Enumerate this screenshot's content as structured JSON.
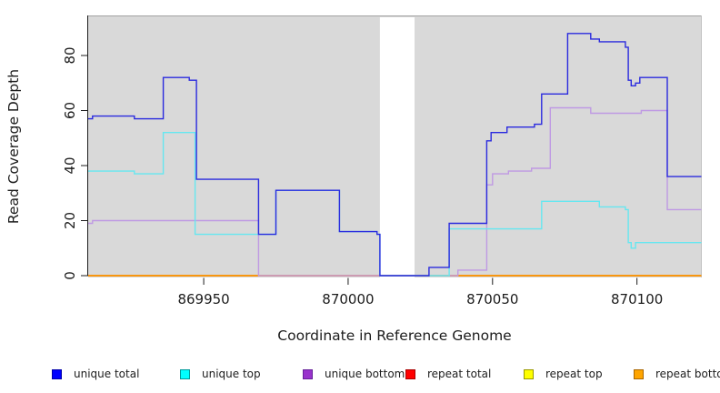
{
  "chart_data": {
    "type": "line",
    "subtype": "step-after-coverage",
    "title": "",
    "xlabel": "Coordinate in Reference Genome",
    "ylabel": "Read Coverage Depth",
    "xlim": [
      869910,
      870122.3
    ],
    "ylim": [
      0,
      94.5
    ],
    "x_ticks": [
      869950,
      870000,
      870050,
      870100
    ],
    "y_ticks": [
      0,
      20,
      40,
      60,
      80
    ],
    "grid": false,
    "panel_bg": "#d9d9d9",
    "masked_region": {
      "from": 870011,
      "to": 870023,
      "color": "#ffffff"
    },
    "legend_position": "bottom",
    "series": [
      {
        "name": "repeat total",
        "line_color": "#cc2222",
        "steps": [
          [
            869910,
            0
          ]
        ]
      },
      {
        "name": "repeat top",
        "line_color": "#f0f000",
        "steps": [
          [
            869910,
            0
          ]
        ]
      },
      {
        "name": "repeat bottom",
        "line_color": "#ff8c00",
        "steps": [
          [
            869910,
            0
          ]
        ]
      },
      {
        "name": "unique bottom",
        "line_color": "#bf99e3",
        "steps": [
          [
            869910,
            19
          ],
          [
            869911.5,
            20
          ],
          [
            869969,
            0
          ],
          [
            870038,
            2
          ],
          [
            870048,
            33
          ],
          [
            870050,
            37
          ],
          [
            870055.5,
            38
          ],
          [
            870063.5,
            39
          ],
          [
            870070,
            61
          ],
          [
            870084,
            59
          ],
          [
            870101.5,
            60
          ],
          [
            870110.5,
            24
          ]
        ]
      },
      {
        "name": "unique top",
        "line_color": "#66e7f0",
        "steps": [
          [
            869910,
            38
          ],
          [
            869926,
            37
          ],
          [
            869936,
            52
          ],
          [
            869947,
            15
          ],
          [
            869975,
            31
          ],
          [
            869997,
            16
          ],
          [
            870010,
            15
          ],
          [
            870011,
            0
          ],
          [
            870035,
            17
          ],
          [
            870067,
            27
          ],
          [
            870087,
            25
          ],
          [
            870096,
            24
          ],
          [
            870097,
            12
          ],
          [
            870098,
            10
          ],
          [
            870099.5,
            12
          ]
        ]
      },
      {
        "name": "unique total",
        "line_color": "#2a2ade",
        "steps": [
          [
            869910,
            57
          ],
          [
            869911.5,
            58
          ],
          [
            869926,
            57
          ],
          [
            869936,
            72
          ],
          [
            869945,
            71
          ],
          [
            869947.5,
            35
          ],
          [
            869969,
            15
          ],
          [
            869975,
            31
          ],
          [
            869997,
            16
          ],
          [
            870010,
            15
          ],
          [
            870011,
            0
          ],
          [
            870028,
            3
          ],
          [
            870035,
            19
          ],
          [
            870048,
            49
          ],
          [
            870049.5,
            52
          ],
          [
            870055,
            54
          ],
          [
            870064.5,
            55
          ],
          [
            870067,
            66
          ],
          [
            870076,
            88
          ],
          [
            870084,
            86
          ],
          [
            870087,
            85
          ],
          [
            870096,
            83
          ],
          [
            870097,
            71
          ],
          [
            870098,
            69
          ],
          [
            870099.5,
            70
          ],
          [
            870101,
            72
          ],
          [
            870110.5,
            36
          ]
        ]
      }
    ]
  },
  "legend": {
    "items": [
      {
        "label": "unique total",
        "fill": "#0000ff",
        "border": "#0000aa"
      },
      {
        "label": "unique top",
        "fill": "#00ffff",
        "border": "#009999"
      },
      {
        "label": "unique bottom",
        "fill": "#9933cc",
        "border": "#662299"
      },
      {
        "label": "repeat total",
        "fill": "#ff0000",
        "border": "#aa0000"
      },
      {
        "label": "repeat top",
        "fill": "#ffff00",
        "border": "#999900"
      },
      {
        "label": "repeat bottom",
        "fill": "#ffa500",
        "border": "#aa6600"
      }
    ]
  }
}
